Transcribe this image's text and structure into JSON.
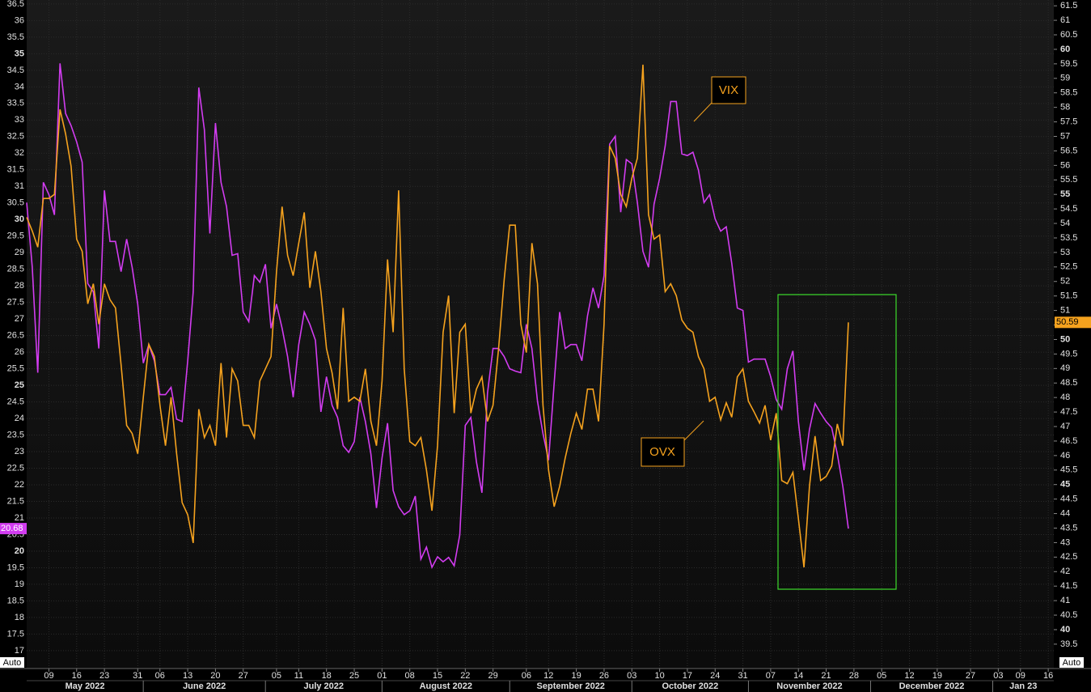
{
  "chart_data": {
    "type": "line",
    "x": [
      "2022-05-03",
      "2022-05-04",
      "2022-05-05",
      "2022-05-06",
      "2022-05-09",
      "2022-05-10",
      "2022-05-11",
      "2022-05-12",
      "2022-05-13",
      "2022-05-16",
      "2022-05-17",
      "2022-05-18",
      "2022-05-19",
      "2022-05-20",
      "2022-05-23",
      "2022-05-24",
      "2022-05-25",
      "2022-05-26",
      "2022-05-27",
      "2022-05-30",
      "2022-05-31",
      "2022-06-01",
      "2022-06-02",
      "2022-06-03",
      "2022-06-06",
      "2022-06-07",
      "2022-06-08",
      "2022-06-09",
      "2022-06-10",
      "2022-06-13",
      "2022-06-14",
      "2022-06-15",
      "2022-06-16",
      "2022-06-17",
      "2022-06-20",
      "2022-06-21",
      "2022-06-22",
      "2022-06-23",
      "2022-06-24",
      "2022-06-27",
      "2022-06-28",
      "2022-06-29",
      "2022-06-30",
      "2022-07-01",
      "2022-07-04",
      "2022-07-05",
      "2022-07-06",
      "2022-07-07",
      "2022-07-08",
      "2022-07-11",
      "2022-07-12",
      "2022-07-13",
      "2022-07-14",
      "2022-07-15",
      "2022-07-18",
      "2022-07-19",
      "2022-07-20",
      "2022-07-21",
      "2022-07-22",
      "2022-07-25",
      "2022-07-26",
      "2022-07-27",
      "2022-07-28",
      "2022-07-29",
      "2022-08-01",
      "2022-08-02",
      "2022-08-03",
      "2022-08-04",
      "2022-08-05",
      "2022-08-08",
      "2022-08-09",
      "2022-08-10",
      "2022-08-11",
      "2022-08-12",
      "2022-08-15",
      "2022-08-16",
      "2022-08-17",
      "2022-08-18",
      "2022-08-19",
      "2022-08-22",
      "2022-08-23",
      "2022-08-24",
      "2022-08-25",
      "2022-08-26",
      "2022-08-29",
      "2022-08-30",
      "2022-08-31",
      "2022-09-01",
      "2022-09-02",
      "2022-09-05",
      "2022-09-06",
      "2022-09-07",
      "2022-09-08",
      "2022-09-09",
      "2022-09-12",
      "2022-09-13",
      "2022-09-14",
      "2022-09-15",
      "2022-09-16",
      "2022-09-19",
      "2022-09-20",
      "2022-09-21",
      "2022-09-22",
      "2022-09-23",
      "2022-09-26",
      "2022-09-27",
      "2022-09-28",
      "2022-09-29",
      "2022-09-30",
      "2022-10-03",
      "2022-10-04",
      "2022-10-05",
      "2022-10-06",
      "2022-10-07",
      "2022-10-10",
      "2022-10-11",
      "2022-10-12",
      "2022-10-13",
      "2022-10-14",
      "2022-10-17",
      "2022-10-18",
      "2022-10-19",
      "2022-10-20",
      "2022-10-21",
      "2022-10-24",
      "2022-10-25",
      "2022-10-26",
      "2022-10-27",
      "2022-10-28",
      "2022-10-31",
      "2022-11-01",
      "2022-11-02",
      "2022-11-03",
      "2022-11-04",
      "2022-11-07",
      "2022-11-08",
      "2022-11-09",
      "2022-11-10",
      "2022-11-11",
      "2022-11-14",
      "2022-11-15",
      "2022-11-16",
      "2022-11-17",
      "2022-11-18",
      "2022-11-21",
      "2022-11-22",
      "2022-11-23",
      "2022-11-24",
      "2022-11-25"
    ],
    "series": [
      {
        "name": "VIX",
        "color": "#d23cf0",
        "axis": "y",
        "values": [
          30.51,
          28.56,
          25.38,
          31.12,
          30.75,
          30.14,
          34.71,
          33.2,
          32.83,
          32.34,
          31.73,
          28.07,
          27.82,
          26.11,
          30.88,
          29.34,
          29.34,
          28.43,
          29.41,
          28.56,
          27.45,
          25.67,
          26.23,
          25.74,
          24.72,
          24.72,
          24.94,
          23.98,
          23.91,
          25.74,
          27.82,
          33.98,
          32.71,
          29.58,
          32.91,
          31.12,
          30.39,
          28.92,
          28.97,
          27.21,
          26.92,
          28.31,
          28.11,
          28.65,
          26.72,
          27.45,
          26.72,
          25.87,
          24.64,
          26.23,
          27.21,
          26.84,
          26.36,
          24.2,
          25.26,
          24.4,
          24.03,
          23.18,
          22.98,
          23.3,
          24.64,
          23.91,
          22.93,
          21.3,
          22.81,
          23.86,
          21.83,
          21.34,
          21.1,
          21.22,
          21.66,
          19.76,
          20.12,
          19.51,
          19.83,
          19.68,
          19.81,
          19.56,
          20.49,
          23.79,
          24.03,
          22.69,
          21.76,
          24.77,
          26.11,
          26.11,
          25.87,
          25.5,
          25.43,
          25.38,
          26.84,
          26.11,
          24.52,
          23.54,
          22.74,
          25.06,
          27.21,
          26.11,
          26.23,
          26.23,
          25.74,
          27.09,
          27.94,
          27.33,
          28.31,
          32.27,
          32.51,
          30.22,
          31.81,
          31.68,
          30.51,
          29.04,
          28.56,
          30.46,
          31.24,
          32.22,
          33.56,
          33.56,
          31.98,
          31.93,
          32.03,
          31.49,
          30.51,
          30.75,
          30.02,
          29.65,
          29.78,
          28.68,
          27.33,
          27.26,
          25.7,
          25.79,
          25.79,
          25.79,
          25.26,
          24.57,
          24.28,
          25.5,
          26.04,
          23.91,
          22.44,
          23.67,
          24.45,
          24.16,
          23.91,
          23.72,
          22.93,
          21.96,
          20.68
        ]
      },
      {
        "name": "OVX",
        "color": "#f5a21e",
        "axis": "y2",
        "values": [
          54.21,
          53.74,
          53.18,
          54.86,
          54.86,
          55.0,
          57.93,
          57.09,
          55.97,
          53.46,
          53.04,
          51.23,
          51.92,
          50.53,
          51.92,
          51.37,
          51.09,
          49.13,
          47.04,
          46.76,
          46.06,
          48.01,
          49.83,
          49.41,
          47.73,
          46.34,
          48.01,
          46.06,
          44.38,
          43.96,
          42.99,
          47.6,
          46.62,
          47.04,
          46.34,
          49.19,
          46.62,
          48.99,
          48.57,
          47.04,
          47.04,
          46.62,
          48.57,
          48.99,
          49.41,
          52.34,
          54.58,
          52.9,
          52.2,
          53.32,
          54.38,
          51.78,
          53.04,
          51.65,
          49.69,
          48.85,
          47.6,
          51.09,
          47.87,
          48.01,
          47.87,
          48.99,
          47.18,
          46.34,
          48.57,
          52.76,
          50.25,
          55.14,
          48.99,
          46.48,
          46.34,
          46.62,
          45.5,
          44.1,
          46.34,
          50.25,
          51.51,
          47.46,
          50.25,
          50.53,
          47.46,
          48.29,
          48.71,
          47.18,
          47.73,
          49.69,
          52.06,
          53.94,
          53.94,
          50.53,
          49.55,
          53.32,
          51.92,
          47.73,
          45.5,
          44.24,
          44.94,
          45.92,
          46.76,
          47.46,
          46.9,
          48.29,
          48.29,
          47.18,
          50.53,
          56.67,
          56.25,
          55.0,
          54.58,
          55.56,
          56.25,
          59.47,
          54.3,
          53.46,
          53.6,
          51.65,
          51.92,
          51.51,
          50.67,
          50.39,
          50.25,
          49.41,
          48.99,
          47.87,
          48.01,
          47.23,
          47.82,
          47.32,
          48.71,
          48.99,
          47.87,
          47.51,
          47.12,
          47.73,
          46.53,
          47.46,
          45.14,
          45.03,
          45.42,
          43.82,
          42.15,
          44.94,
          46.67,
          45.14,
          45.28,
          45.64,
          47.09,
          46.34,
          50.59
        ]
      }
    ],
    "xlim": [
      "2022-05-03",
      "2023-01-17"
    ],
    "xticks": [
      {
        "value": "2022-05-09",
        "label": "09"
      },
      {
        "value": "2022-05-16",
        "label": "16"
      },
      {
        "value": "2022-05-23",
        "label": "23"
      },
      {
        "value": "2022-05-31",
        "label": "31"
      },
      {
        "value": "2022-06-06",
        "label": "06"
      },
      {
        "value": "2022-06-13",
        "label": "13"
      },
      {
        "value": "2022-06-20",
        "label": "20"
      },
      {
        "value": "2022-06-27",
        "label": "27"
      },
      {
        "value": "2022-07-05",
        "label": "05"
      },
      {
        "value": "2022-07-11",
        "label": "11"
      },
      {
        "value": "2022-07-18",
        "label": "18"
      },
      {
        "value": "2022-07-25",
        "label": "25"
      },
      {
        "value": "2022-08-01",
        "label": "01"
      },
      {
        "value": "2022-08-08",
        "label": "08"
      },
      {
        "value": "2022-08-15",
        "label": "15"
      },
      {
        "value": "2022-08-22",
        "label": "22"
      },
      {
        "value": "2022-08-29",
        "label": "29"
      },
      {
        "value": "2022-09-06",
        "label": "06"
      },
      {
        "value": "2022-09-12",
        "label": "12"
      },
      {
        "value": "2022-09-19",
        "label": "19"
      },
      {
        "value": "2022-09-26",
        "label": "26"
      },
      {
        "value": "2022-10-03",
        "label": "03"
      },
      {
        "value": "2022-10-10",
        "label": "10"
      },
      {
        "value": "2022-10-17",
        "label": "17"
      },
      {
        "value": "2022-10-24",
        "label": "24"
      },
      {
        "value": "2022-10-31",
        "label": "31"
      },
      {
        "value": "2022-11-07",
        "label": "07"
      },
      {
        "value": "2022-11-14",
        "label": "14"
      },
      {
        "value": "2022-11-21",
        "label": "21"
      },
      {
        "value": "2022-11-28",
        "label": "28"
      },
      {
        "value": "2022-12-05",
        "label": "05"
      },
      {
        "value": "2022-12-12",
        "label": "12"
      },
      {
        "value": "2022-12-19",
        "label": "19"
      },
      {
        "value": "2022-12-27",
        "label": "27"
      },
      {
        "value": "2023-01-03",
        "label": "03"
      },
      {
        "value": "2023-01-09",
        "label": "09"
      },
      {
        "value": "2023-01-16",
        "label": "16"
      }
    ],
    "months": [
      {
        "value": "2022-05",
        "label": "May 2022"
      },
      {
        "value": "2022-06",
        "label": "June 2022"
      },
      {
        "value": "2022-07",
        "label": "July 2022"
      },
      {
        "value": "2022-08",
        "label": "August 2022"
      },
      {
        "value": "2022-09",
        "label": "September 2022"
      },
      {
        "value": "2022-10",
        "label": "October 2022"
      },
      {
        "value": "2022-11",
        "label": "November 2022"
      },
      {
        "value": "2022-12",
        "label": "December 2022"
      },
      {
        "value": "2023-01",
        "label": "Jan 23"
      }
    ],
    "ylim": [
      16.46,
      36.62
    ],
    "yticks": [
      17,
      17.5,
      18,
      18.5,
      19,
      19.5,
      20,
      20.5,
      21,
      21.5,
      22,
      22.5,
      23,
      23.5,
      24,
      24.5,
      25,
      25.5,
      26,
      26.5,
      27,
      27.5,
      28,
      28.5,
      29,
      29.5,
      30,
      30.5,
      31,
      31.5,
      32,
      32.5,
      33,
      33.5,
      34,
      34.5,
      35,
      35.5,
      36,
      36.5
    ],
    "y2lim": [
      38.66,
      61.7
    ],
    "y2ticks": [
      39.5,
      40,
      40.5,
      41,
      41.5,
      42,
      42.5,
      43,
      43.5,
      44,
      44.5,
      45,
      45.5,
      46,
      46.5,
      47,
      47.5,
      48,
      48.5,
      49,
      49.5,
      50,
      50.5,
      51,
      51.5,
      52,
      52.5,
      53,
      53.5,
      54,
      54.5,
      55,
      55.5,
      56,
      56.5,
      57,
      57.5,
      58,
      58.5,
      59,
      59.5,
      60,
      60.5,
      61,
      61.5
    ],
    "grid": true,
    "scale_mode": "Auto"
  }
}
